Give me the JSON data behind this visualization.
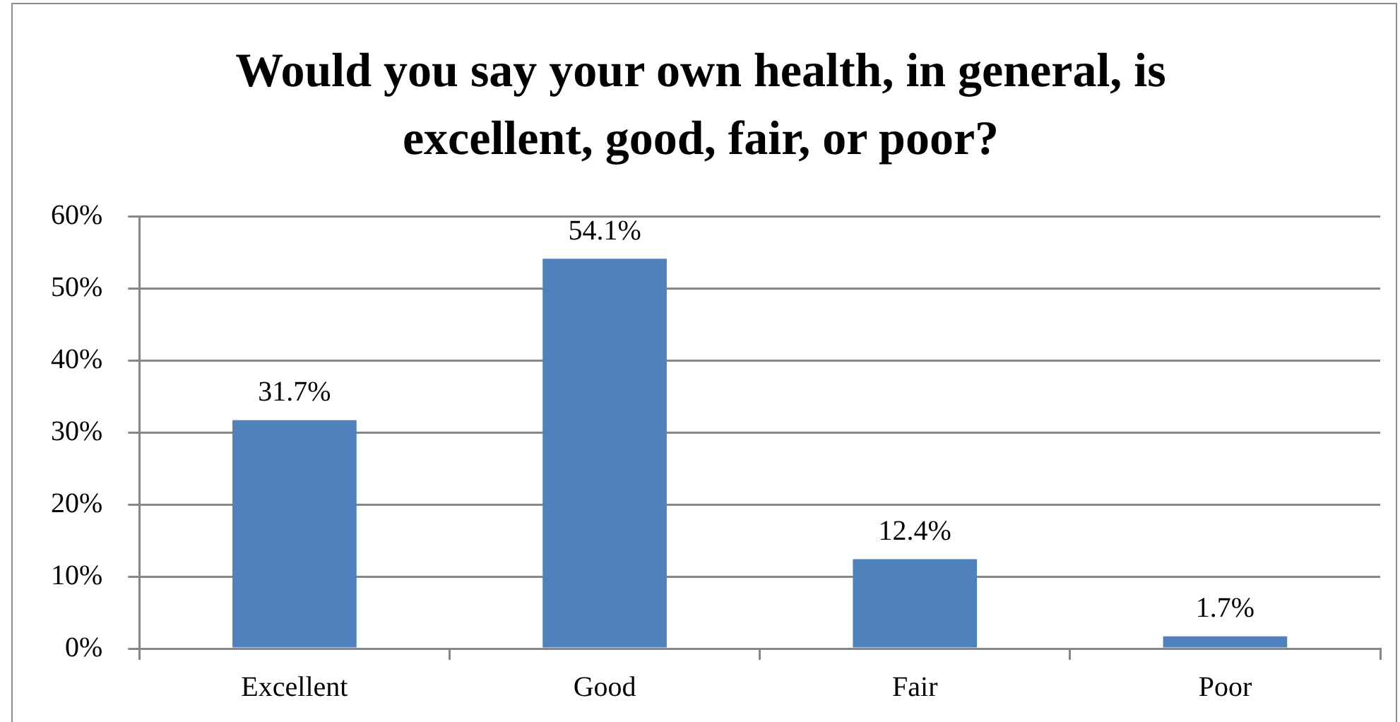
{
  "chart_data": {
    "type": "bar",
    "title": "Would you say your own health, in general, is excellent, good, fair, or poor?",
    "categories": [
      "Excellent",
      "Good",
      "Fair",
      "Poor"
    ],
    "values": [
      31.7,
      54.1,
      12.4,
      1.7
    ],
    "color": "#4f81bd",
    "value_labels": [
      "31.7%",
      "54.1%",
      "12.4%",
      "1.7%"
    ],
    "ylim": [
      0,
      60
    ],
    "yticks": [
      {
        "value": 0,
        "label": "0%"
      },
      {
        "value": 10,
        "label": "10%"
      },
      {
        "value": 20,
        "label": "20%"
      },
      {
        "value": 30,
        "label": "30%"
      },
      {
        "value": 40,
        "label": "40%"
      },
      {
        "value": 50,
        "label": "50%"
      },
      {
        "value": 60,
        "label": "60%"
      }
    ],
    "grid": "y"
  }
}
